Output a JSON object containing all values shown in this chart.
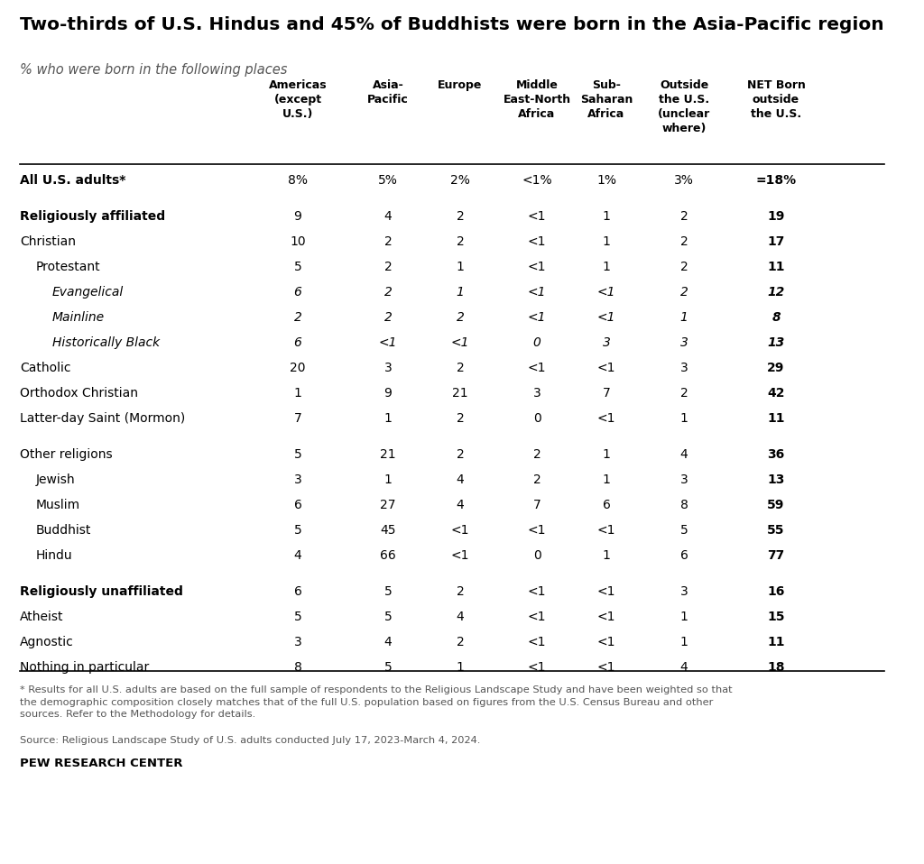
{
  "title": "Two-thirds of U.S. Hindus and 45% of Buddhists were born in the Asia-Pacific region",
  "subtitle": "% who were born in the following places",
  "col_headers": [
    "Americas\n(except\nU.S.)",
    "Asia-\nPacific",
    "Europe",
    "Middle\nEast-North\nAfrica",
    "Sub-\nSaharan\nAfrica",
    "Outside\nthe U.S.\n(unclear\nwhere)",
    "NET Born\noutside\nthe U.S."
  ],
  "footnote1": "* Results for all U.S. adults are based on the full sample of respondents to the Religious Landscape Study and have been weighted so that\nthe demographic composition closely matches that of the full U.S. population based on figures from the U.S. Census Bureau and other\nsources. Refer to the Methodology for details.",
  "footnote2": "Source: Religious Landscape Study of U.S. adults conducted July 17, 2023-March 4, 2024.",
  "branding": "PEW RESEARCH CENTER",
  "rows": [
    {
      "label": "All U.S. adults*",
      "style": "bold",
      "values": [
        "8%",
        "5%",
        "2%",
        "<1%",
        "1%",
        "3%",
        "=18%"
      ]
    },
    {
      "label": "",
      "style": "spacer",
      "values": [
        "",
        "",
        "",
        "",
        "",
        "",
        ""
      ]
    },
    {
      "label": "Religiously affiliated",
      "style": "bold",
      "values": [
        "9",
        "4",
        "2",
        "<1",
        "1",
        "2",
        "19"
      ]
    },
    {
      "label": "Christian",
      "style": "normal",
      "values": [
        "10",
        "2",
        "2",
        "<1",
        "1",
        "2",
        "17"
      ]
    },
    {
      "label": "Protestant",
      "style": "indent1",
      "values": [
        "5",
        "2",
        "1",
        "<1",
        "1",
        "2",
        "11"
      ]
    },
    {
      "label": "Evangelical",
      "style": "indent2_italic",
      "values": [
        "6",
        "2",
        "1",
        "<1",
        "<1",
        "2",
        "12"
      ]
    },
    {
      "label": "Mainline",
      "style": "indent2_italic",
      "values": [
        "2",
        "2",
        "2",
        "<1",
        "<1",
        "1",
        "8"
      ]
    },
    {
      "label": "Historically Black",
      "style": "indent2_italic",
      "values": [
        "6",
        "<1",
        "<1",
        "0",
        "3",
        "3",
        "13"
      ]
    },
    {
      "label": "Catholic",
      "style": "normal",
      "values": [
        "20",
        "3",
        "2",
        "<1",
        "<1",
        "3",
        "29"
      ]
    },
    {
      "label": "Orthodox Christian",
      "style": "normal",
      "values": [
        "1",
        "9",
        "21",
        "3",
        "7",
        "2",
        "42"
      ]
    },
    {
      "label": "Latter-day Saint (Mormon)",
      "style": "normal",
      "values": [
        "7",
        "1",
        "2",
        "0",
        "<1",
        "1",
        "11"
      ]
    },
    {
      "label": "",
      "style": "spacer",
      "values": [
        "",
        "",
        "",
        "",
        "",
        "",
        ""
      ]
    },
    {
      "label": "Other religions",
      "style": "normal",
      "values": [
        "5",
        "21",
        "2",
        "2",
        "1",
        "4",
        "36"
      ]
    },
    {
      "label": "Jewish",
      "style": "indent1",
      "values": [
        "3",
        "1",
        "4",
        "2",
        "1",
        "3",
        "13"
      ]
    },
    {
      "label": "Muslim",
      "style": "indent1",
      "values": [
        "6",
        "27",
        "4",
        "7",
        "6",
        "8",
        "59"
      ]
    },
    {
      "label": "Buddhist",
      "style": "indent1",
      "values": [
        "5",
        "45",
        "<1",
        "<1",
        "<1",
        "5",
        "55"
      ]
    },
    {
      "label": "Hindu",
      "style": "indent1",
      "values": [
        "4",
        "66",
        "<1",
        "0",
        "1",
        "6",
        "77"
      ]
    },
    {
      "label": "",
      "style": "spacer",
      "values": [
        "",
        "",
        "",
        "",
        "",
        "",
        ""
      ]
    },
    {
      "label": "Religiously unaffiliated",
      "style": "bold",
      "values": [
        "6",
        "5",
        "2",
        "<1",
        "<1",
        "3",
        "16"
      ]
    },
    {
      "label": "Atheist",
      "style": "normal",
      "values": [
        "5",
        "5",
        "4",
        "<1",
        "<1",
        "1",
        "15"
      ]
    },
    {
      "label": "Agnostic",
      "style": "normal",
      "values": [
        "3",
        "4",
        "2",
        "<1",
        "<1",
        "1",
        "11"
      ]
    },
    {
      "label": "Nothing in particular",
      "style": "normal",
      "values": [
        "8",
        "5",
        "1",
        "<1",
        "<1",
        "4",
        "18"
      ]
    }
  ],
  "bg_color": "#FFFFFF",
  "text_color": "#000000",
  "gray_color": "#555555"
}
